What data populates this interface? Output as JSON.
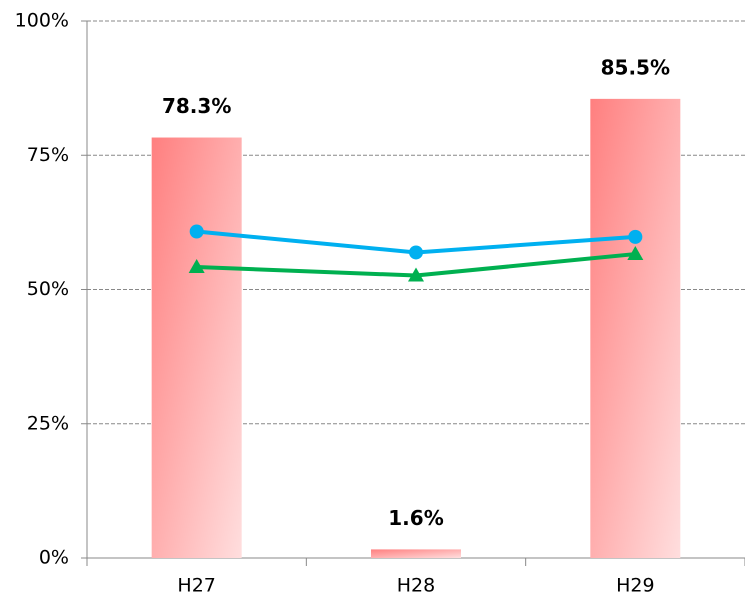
{
  "chart_data": {
    "type": "bar",
    "categories": [
      "H27",
      "H28",
      "H29"
    ],
    "series": [
      {
        "type": "bar",
        "color": "#ff7f7f",
        "values": [
          78.3,
          1.6,
          85.5
        ],
        "value_labels": [
          "78.3%",
          "1.6%",
          "85.5%"
        ]
      },
      {
        "type": "line",
        "color": "#00b0f0",
        "marker": "circle",
        "values": [
          60.8,
          56.9,
          59.8
        ]
      },
      {
        "type": "line",
        "color": "#00b050",
        "marker": "triangle",
        "values": [
          54.2,
          52.6,
          56.6
        ]
      }
    ],
    "ylim": [
      0,
      100
    ],
    "yticks": [
      {
        "value": 0,
        "label": "0%"
      },
      {
        "value": 25,
        "label": "25%"
      },
      {
        "value": 50,
        "label": "50%"
      },
      {
        "value": 75,
        "label": "75%"
      },
      {
        "value": 100,
        "label": "100%"
      }
    ],
    "grid": true
  }
}
